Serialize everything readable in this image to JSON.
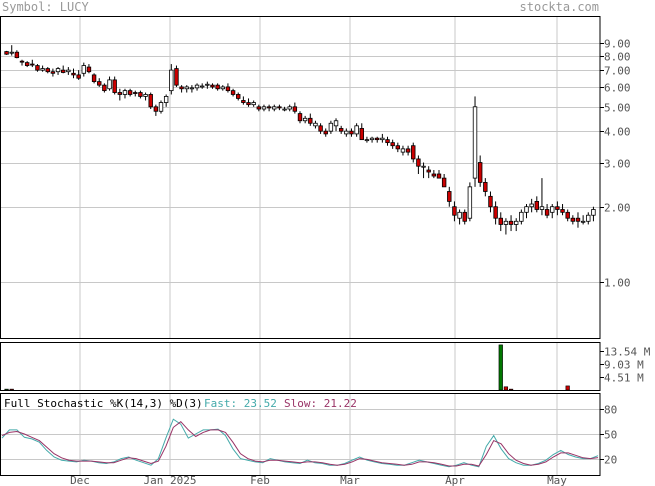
{
  "header": {
    "symbol_label": "Symbol: LUCY",
    "source": "stockta.com"
  },
  "colors": {
    "up": "#ffffff",
    "down": "#cc0000",
    "candle_outline": "#000000",
    "grid": "#c8c8c8",
    "volume": "#007700",
    "volume_down": "#cc0000",
    "fast_line": "#44aaaa",
    "slow_line": "#993366"
  },
  "chart_data": [
    {
      "type": "candlestick",
      "title": "Symbol: LUCY",
      "y_scale": "log",
      "ylim": [
        0.6,
        11.5
      ],
      "y_ticks": [
        9.0,
        8.0,
        7.0,
        6.0,
        5.0,
        4.0,
        3.0,
        2.0,
        1.0
      ],
      "y_tick_labels": [
        "9.00",
        "8.00",
        "7.00",
        "6.00",
        "5.00",
        "4.00",
        "3.00",
        "2.00",
        "1.00"
      ],
      "x_labels": [
        "Dec",
        "Jan 2025",
        "Feb",
        "Mar",
        "Apr",
        "May"
      ],
      "grid": true,
      "candles": [
        [
          8.3,
          8.35,
          8.05,
          8.1
        ],
        [
          8.2,
          8.8,
          8.0,
          8.25
        ],
        [
          8.25,
          8.4,
          7.8,
          7.85
        ],
        [
          7.6,
          7.7,
          7.3,
          7.55
        ],
        [
          7.5,
          7.6,
          7.2,
          7.3
        ],
        [
          7.4,
          7.7,
          7.2,
          7.35
        ],
        [
          7.3,
          7.4,
          6.9,
          7.0
        ],
        [
          7.0,
          7.3,
          6.9,
          7.1
        ],
        [
          7.1,
          7.2,
          6.8,
          6.9
        ],
        [
          6.9,
          7.1,
          6.6,
          6.8
        ],
        [
          6.9,
          7.2,
          6.7,
          7.1
        ],
        [
          7.0,
          7.3,
          6.8,
          6.85
        ],
        [
          6.9,
          7.2,
          6.7,
          7.0
        ],
        [
          6.8,
          7.1,
          6.5,
          6.7
        ],
        [
          6.7,
          7.0,
          6.4,
          6.5
        ],
        [
          6.8,
          7.5,
          6.6,
          7.3
        ],
        [
          7.2,
          7.4,
          6.8,
          6.9
        ],
        [
          6.7,
          6.8,
          6.2,
          6.3
        ],
        [
          6.3,
          6.5,
          6.0,
          6.1
        ],
        [
          6.1,
          6.2,
          5.7,
          5.8
        ],
        [
          5.9,
          6.6,
          5.8,
          6.4
        ],
        [
          6.4,
          6.6,
          5.6,
          5.7
        ],
        [
          5.7,
          5.9,
          5.3,
          5.6
        ],
        [
          5.6,
          5.9,
          5.4,
          5.8
        ],
        [
          5.8,
          5.9,
          5.5,
          5.6
        ],
        [
          5.7,
          5.8,
          5.5,
          5.65
        ],
        [
          5.7,
          5.8,
          5.4,
          5.5
        ],
        [
          5.5,
          5.7,
          5.3,
          5.6
        ],
        [
          5.6,
          5.7,
          4.9,
          5.0
        ],
        [
          5.0,
          5.1,
          4.6,
          4.8
        ],
        [
          4.8,
          5.3,
          4.7,
          5.2
        ],
        [
          5.2,
          5.6,
          5.0,
          5.5
        ],
        [
          5.8,
          7.4,
          5.6,
          7.0
        ],
        [
          7.1,
          7.3,
          6.0,
          6.1
        ],
        [
          6.0,
          6.1,
          5.7,
          5.9
        ],
        [
          5.9,
          6.1,
          5.7,
          6.0
        ],
        [
          5.9,
          6.1,
          5.7,
          5.95
        ],
        [
          5.95,
          6.2,
          5.8,
          6.1
        ],
        [
          6.0,
          6.2,
          5.9,
          6.05
        ],
        [
          6.1,
          6.3,
          5.9,
          6.15
        ],
        [
          6.1,
          6.2,
          5.9,
          6.0
        ],
        [
          6.1,
          6.2,
          5.8,
          5.9
        ],
        [
          5.9,
          6.1,
          5.8,
          6.0
        ],
        [
          6.0,
          6.2,
          5.7,
          5.8
        ],
        [
          5.8,
          5.9,
          5.5,
          5.6
        ],
        [
          5.6,
          5.7,
          5.3,
          5.4
        ],
        [
          5.3,
          5.5,
          5.1,
          5.2
        ],
        [
          5.2,
          5.4,
          5.0,
          5.1
        ],
        [
          5.1,
          5.3,
          5.0,
          5.2
        ],
        [
          5.0,
          5.1,
          4.8,
          4.9
        ],
        [
          4.9,
          5.1,
          4.8,
          5.0
        ],
        [
          5.0,
          5.1,
          4.8,
          4.95
        ],
        [
          4.9,
          5.1,
          4.8,
          5.0
        ],
        [
          5.0,
          5.1,
          4.85,
          4.95
        ],
        [
          4.9,
          5.0,
          4.8,
          4.9
        ],
        [
          4.9,
          5.1,
          4.8,
          5.0
        ],
        [
          5.0,
          5.2,
          4.7,
          4.8
        ],
        [
          4.7,
          4.8,
          4.3,
          4.4
        ],
        [
          4.4,
          4.6,
          4.3,
          4.5
        ],
        [
          4.5,
          4.7,
          4.2,
          4.3
        ],
        [
          4.2,
          4.4,
          4.1,
          4.3
        ],
        [
          4.2,
          4.3,
          3.9,
          4.0
        ],
        [
          4.0,
          4.1,
          3.8,
          3.9
        ],
        [
          4.0,
          4.4,
          3.9,
          4.3
        ],
        [
          4.2,
          4.5,
          4.0,
          4.4
        ],
        [
          4.1,
          4.2,
          3.9,
          4.0
        ],
        [
          3.9,
          4.1,
          3.8,
          4.0
        ],
        [
          4.0,
          4.1,
          3.8,
          3.9
        ],
        [
          3.9,
          4.3,
          3.8,
          4.2
        ],
        [
          4.1,
          4.3,
          3.7,
          3.7
        ],
        [
          3.7,
          3.8,
          3.6,
          3.7
        ],
        [
          3.7,
          3.8,
          3.6,
          3.75
        ],
        [
          3.75,
          3.8,
          3.6,
          3.7
        ],
        [
          3.7,
          3.9,
          3.6,
          3.75
        ],
        [
          3.7,
          3.8,
          3.5,
          3.6
        ],
        [
          3.6,
          3.7,
          3.4,
          3.5
        ],
        [
          3.5,
          3.6,
          3.3,
          3.4
        ],
        [
          3.3,
          3.5,
          3.2,
          3.4
        ],
        [
          3.4,
          3.5,
          3.2,
          3.3
        ],
        [
          3.5,
          3.6,
          3.0,
          3.1
        ],
        [
          3.1,
          3.2,
          2.7,
          2.9
        ],
        [
          2.9,
          3.0,
          2.6,
          2.9
        ],
        [
          2.8,
          2.9,
          2.6,
          2.75
        ],
        [
          2.7,
          2.8,
          2.6,
          2.65
        ],
        [
          2.7,
          2.8,
          2.6,
          2.6
        ],
        [
          2.6,
          2.7,
          2.4,
          2.4
        ],
        [
          2.3,
          2.4,
          2.0,
          2.1
        ],
        [
          2.0,
          2.1,
          1.75,
          1.85
        ],
        [
          1.8,
          1.95,
          1.7,
          1.9
        ],
        [
          1.9,
          1.95,
          1.7,
          1.75
        ],
        [
          1.8,
          2.5,
          1.75,
          2.4
        ],
        [
          2.6,
          5.5,
          2.4,
          5.0
        ],
        [
          3.0,
          3.2,
          2.4,
          2.5
        ],
        [
          2.5,
          2.6,
          2.2,
          2.3
        ],
        [
          2.2,
          2.3,
          1.9,
          2.0
        ],
        [
          2.0,
          2.1,
          1.7,
          1.8
        ],
        [
          1.8,
          1.9,
          1.6,
          1.7
        ],
        [
          1.7,
          1.8,
          1.55,
          1.75
        ],
        [
          1.75,
          1.85,
          1.6,
          1.7
        ],
        [
          1.7,
          1.8,
          1.6,
          1.75
        ],
        [
          1.75,
          1.95,
          1.7,
          1.9
        ],
        [
          1.9,
          2.05,
          1.8,
          2.0
        ],
        [
          2.0,
          2.15,
          1.9,
          2.05
        ],
        [
          2.1,
          2.2,
          1.9,
          1.95
        ],
        [
          1.95,
          2.6,
          1.85,
          2.0
        ],
        [
          1.95,
          2.05,
          1.8,
          1.85
        ],
        [
          1.9,
          2.05,
          1.8,
          2.0
        ],
        [
          2.0,
          2.1,
          1.85,
          1.95
        ],
        [
          1.95,
          2.05,
          1.85,
          1.9
        ],
        [
          1.9,
          1.95,
          1.75,
          1.8
        ],
        [
          1.8,
          1.85,
          1.7,
          1.75
        ],
        [
          1.8,
          1.9,
          1.65,
          1.75
        ],
        [
          1.75,
          1.85,
          1.7,
          1.75
        ],
        [
          1.75,
          1.9,
          1.7,
          1.85
        ],
        [
          1.85,
          2.0,
          1.75,
          1.95
        ]
      ]
    },
    {
      "type": "bar",
      "title": "Volume",
      "y_ticks": [
        13.54,
        9.03,
        4.51
      ],
      "y_tick_labels": [
        "13.54 M",
        "9.03 M",
        "4.51 M"
      ],
      "ylim": [
        0,
        16.5
      ],
      "bars": [
        {
          "index": 0,
          "value": 0.3,
          "down": false
        },
        {
          "index": 1,
          "value": 0.3,
          "down": true
        },
        {
          "index": 96,
          "value": 15.5,
          "down": false
        },
        {
          "index": 97,
          "value": 1.1,
          "down": true
        },
        {
          "index": 98,
          "value": 0.3,
          "down": true
        },
        {
          "index": 109,
          "value": 1.4,
          "down": true
        }
      ]
    },
    {
      "type": "line",
      "title": "Full Stochastic %K(14,3) %D(3)",
      "fast_label": "Fast: 23.52",
      "slow_label": "Slow: 21.22",
      "y_ticks": [
        80,
        50,
        20
      ],
      "y_tick_labels": [
        "80",
        "50",
        "20"
      ],
      "ylim": [
        0,
        100
      ],
      "series": [
        {
          "name": "Fast",
          "values": [
            45,
            55,
            55,
            46,
            44,
            40,
            30,
            22,
            18,
            17,
            16,
            18,
            17,
            15,
            14,
            16,
            20,
            22,
            18,
            15,
            12,
            20,
            45,
            68,
            62,
            45,
            50,
            55,
            55,
            56,
            48,
            32,
            20,
            18,
            16,
            15,
            20,
            18,
            16,
            15,
            14,
            18,
            15,
            14,
            12,
            12,
            14,
            18,
            22,
            18,
            16,
            14,
            13,
            12,
            12,
            15,
            18,
            16,
            14,
            12,
            10,
            12,
            15,
            12,
            10,
            35,
            48,
            32,
            20,
            15,
            12,
            12,
            14,
            18,
            25,
            30,
            25,
            22,
            20,
            20,
            23.52
          ]
        },
        {
          "name": "Slow",
          "values": [
            48,
            52,
            53,
            50,
            46,
            42,
            34,
            26,
            21,
            18,
            17,
            17,
            17,
            16,
            15,
            15,
            18,
            21,
            20,
            17,
            14,
            17,
            35,
            58,
            65,
            55,
            47,
            52,
            55,
            55,
            52,
            40,
            26,
            20,
            17,
            16,
            18,
            18,
            17,
            16,
            15,
            16,
            16,
            15,
            13,
            12,
            13,
            16,
            20,
            19,
            17,
            15,
            14,
            13,
            12,
            13,
            16,
            16,
            15,
            13,
            11,
            11,
            13,
            13,
            11,
            25,
            42,
            38,
            26,
            18,
            14,
            12,
            13,
            16,
            22,
            27,
            27,
            24,
            21,
            20,
            21.22
          ]
        }
      ]
    }
  ]
}
